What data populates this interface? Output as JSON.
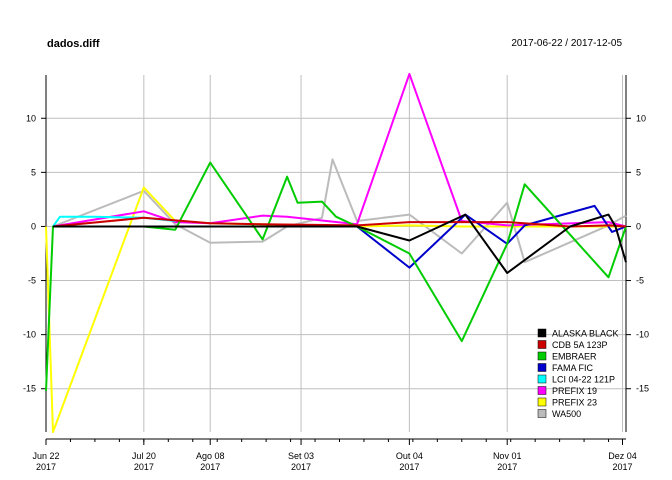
{
  "header": {
    "title": "dados.diff",
    "date_range": "2017-06-22 / 2017-12-05"
  },
  "chart_data": {
    "type": "line",
    "title": "dados.diff",
    "subtitle": "2017-06-22 / 2017-12-05",
    "xlabel": "",
    "ylabel": "",
    "ylim": [
      -19,
      14
    ],
    "y_ticks": [
      -15,
      -10,
      -5,
      0,
      5,
      10
    ],
    "x_ticks": [
      {
        "date": "2017-06-22",
        "label": "Jun 22",
        "year": "2017"
      },
      {
        "date": "2017-07-20",
        "label": "Jul 20",
        "year": "2017"
      },
      {
        "date": "2017-08-08",
        "label": "Ago 08",
        "year": "2017"
      },
      {
        "date": "2017-09-03",
        "label": "Set 03",
        "year": "2017"
      },
      {
        "date": "2017-10-04",
        "label": "Out 04",
        "year": "2017"
      },
      {
        "date": "2017-11-01",
        "label": "Nov 01",
        "year": "2017"
      },
      {
        "date": "2017-12-04",
        "label": "Dez 04",
        "year": "2017"
      }
    ],
    "grid": true,
    "legend_position": "bottom-right",
    "series": [
      {
        "name": "ALASKA BLACK",
        "color": "#000000",
        "x": [
          "2017-06-24",
          "2017-07-20",
          "2017-08-08",
          "2017-08-23",
          "2017-09-19",
          "2017-10-04",
          "2017-10-20",
          "2017-11-01",
          "2017-11-19",
          "2017-11-30",
          "2017-12-02",
          "2017-12-05"
        ],
        "y": [
          0,
          0,
          0,
          0,
          0,
          -1.3,
          1.1,
          -4.3,
          0,
          1.1,
          0,
          -3.3
        ]
      },
      {
        "name": "CDB 5A 123P",
        "color": "#cc0000",
        "x": [
          "2017-06-24",
          "2017-07-20",
          "2017-08-08",
          "2017-08-23",
          "2017-09-19",
          "2017-10-04",
          "2017-10-20",
          "2017-11-01",
          "2017-11-19",
          "2017-11-30",
          "2017-12-05"
        ],
        "y": [
          0,
          0.8,
          0.3,
          0.2,
          0.1,
          0.4,
          0.4,
          0.4,
          0,
          0.1,
          0
        ]
      },
      {
        "name": "EMBRAER",
        "color": "#00cc00",
        "x": [
          "2017-06-22",
          "2017-06-24",
          "2017-07-20",
          "2017-07-29",
          "2017-08-08",
          "2017-08-23",
          "2017-08-30",
          "2017-09-02",
          "2017-09-09",
          "2017-09-13",
          "2017-09-19",
          "2017-10-04",
          "2017-10-19",
          "2017-11-01",
          "2017-11-06",
          "2017-11-30",
          "2017-12-05"
        ],
        "y": [
          -15.2,
          0,
          0,
          -0.3,
          5.9,
          -1.2,
          4.6,
          2.2,
          2.3,
          0.9,
          0,
          -2.5,
          -10.6,
          -1.6,
          3.9,
          -4.7,
          0
        ]
      },
      {
        "name": "FAMA FIC",
        "color": "#0000cc",
        "x": [
          "2017-09-19",
          "2017-10-04",
          "2017-10-20",
          "2017-11-01",
          "2017-11-06",
          "2017-11-26",
          "2017-12-01",
          "2017-12-05"
        ],
        "y": [
          0,
          -3.8,
          1.1,
          -1.6,
          0.1,
          1.9,
          -0.5,
          0
        ]
      },
      {
        "name": "LCI 04-22 121P",
        "color": "#00ffff",
        "x": [
          "2017-06-24",
          "2017-06-26",
          "2017-07-06",
          "2017-07-20",
          "2017-07-29"
        ],
        "y": [
          0,
          0.9,
          0.9,
          0.8,
          0.5
        ]
      },
      {
        "name": "PREFIX 19",
        "color": "#ff00ff",
        "x": [
          "2017-06-24",
          "2017-07-20",
          "2017-07-29",
          "2017-08-08",
          "2017-08-23",
          "2017-08-30",
          "2017-09-19",
          "2017-10-04",
          "2017-10-19",
          "2017-11-01",
          "2017-11-30",
          "2017-12-05"
        ],
        "y": [
          0,
          1.4,
          0.4,
          0.3,
          1.0,
          0.9,
          0.2,
          14.1,
          0.5,
          0.1,
          0.4,
          0
        ]
      },
      {
        "name": "PREFIX 23",
        "color": "#ffff00",
        "x": [
          "2017-06-22",
          "2017-06-24",
          "2017-07-20",
          "2017-07-29",
          "2017-08-08",
          "2017-09-19",
          "2017-10-04",
          "2017-10-19",
          "2017-11-01",
          "2017-12-05"
        ],
        "y": [
          0,
          -19,
          3.6,
          0.5,
          0.3,
          0,
          0.1,
          0,
          0,
          0
        ]
      },
      {
        "name": "WA500",
        "color": "#bbbbbb",
        "x": [
          "2017-06-24",
          "2017-07-20",
          "2017-07-29",
          "2017-08-08",
          "2017-08-23",
          "2017-08-30",
          "2017-09-09",
          "2017-09-12",
          "2017-09-19",
          "2017-10-04",
          "2017-10-19",
          "2017-11-01",
          "2017-11-06",
          "2017-11-30",
          "2017-12-05"
        ],
        "y": [
          0,
          3.3,
          0.2,
          -1.5,
          -1.4,
          0,
          0.8,
          6.2,
          0.5,
          1.1,
          -2.5,
          2.2,
          -3.3,
          0.1,
          1.0
        ]
      }
    ]
  }
}
